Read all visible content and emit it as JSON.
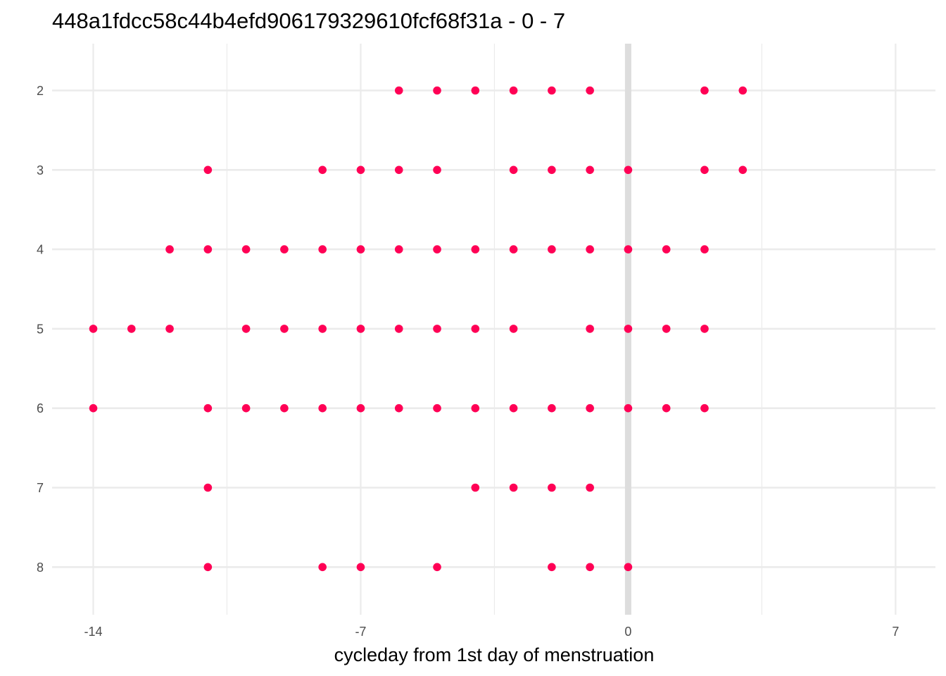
{
  "chart_data": {
    "type": "scatter",
    "title": "448a1fdcc58c44b4efd906179329610fcf68f31a - 0 - 7",
    "xlabel": "cycleday from 1st day of menstruation",
    "ylabel": "",
    "x_ticks": [
      -14,
      -7,
      0,
      7
    ],
    "x_tick_labels": [
      "-14",
      "-7",
      "0",
      "7"
    ],
    "y_ticks": [
      2,
      3,
      4,
      5,
      6,
      7,
      8
    ],
    "y_tick_labels": [
      "2",
      "3",
      "4",
      "5",
      "6",
      "7",
      "8"
    ],
    "xlim": [
      -14,
      7
    ],
    "ylim": [
      8,
      2
    ],
    "y_reversed": true,
    "grid": true,
    "reference_line_x": 0,
    "point_color": "#ff0055",
    "grid_color": "#ebebeb",
    "reference_line_color": "#dddddd",
    "points": [
      {
        "x": -6,
        "y": 2
      },
      {
        "x": -5,
        "y": 2
      },
      {
        "x": -4,
        "y": 2
      },
      {
        "x": -3,
        "y": 2
      },
      {
        "x": -2,
        "y": 2
      },
      {
        "x": -1,
        "y": 2
      },
      {
        "x": 2,
        "y": 2
      },
      {
        "x": 3,
        "y": 2
      },
      {
        "x": -11,
        "y": 3
      },
      {
        "x": -8,
        "y": 3
      },
      {
        "x": -7,
        "y": 3
      },
      {
        "x": -6,
        "y": 3
      },
      {
        "x": -5,
        "y": 3
      },
      {
        "x": -3,
        "y": 3
      },
      {
        "x": -2,
        "y": 3
      },
      {
        "x": -1,
        "y": 3
      },
      {
        "x": 0,
        "y": 3
      },
      {
        "x": 2,
        "y": 3
      },
      {
        "x": 3,
        "y": 3
      },
      {
        "x": -12,
        "y": 4
      },
      {
        "x": -11,
        "y": 4
      },
      {
        "x": -10,
        "y": 4
      },
      {
        "x": -9,
        "y": 4
      },
      {
        "x": -8,
        "y": 4
      },
      {
        "x": -7,
        "y": 4
      },
      {
        "x": -6,
        "y": 4
      },
      {
        "x": -5,
        "y": 4
      },
      {
        "x": -4,
        "y": 4
      },
      {
        "x": -3,
        "y": 4
      },
      {
        "x": -2,
        "y": 4
      },
      {
        "x": -1,
        "y": 4
      },
      {
        "x": 0,
        "y": 4
      },
      {
        "x": 1,
        "y": 4
      },
      {
        "x": 2,
        "y": 4
      },
      {
        "x": -14,
        "y": 5
      },
      {
        "x": -13,
        "y": 5
      },
      {
        "x": -12,
        "y": 5
      },
      {
        "x": -10,
        "y": 5
      },
      {
        "x": -9,
        "y": 5
      },
      {
        "x": -8,
        "y": 5
      },
      {
        "x": -7,
        "y": 5
      },
      {
        "x": -6,
        "y": 5
      },
      {
        "x": -5,
        "y": 5
      },
      {
        "x": -4,
        "y": 5
      },
      {
        "x": -3,
        "y": 5
      },
      {
        "x": -1,
        "y": 5
      },
      {
        "x": 0,
        "y": 5
      },
      {
        "x": 1,
        "y": 5
      },
      {
        "x": 2,
        "y": 5
      },
      {
        "x": -14,
        "y": 6
      },
      {
        "x": -11,
        "y": 6
      },
      {
        "x": -10,
        "y": 6
      },
      {
        "x": -9,
        "y": 6
      },
      {
        "x": -8,
        "y": 6
      },
      {
        "x": -7,
        "y": 6
      },
      {
        "x": -6,
        "y": 6
      },
      {
        "x": -5,
        "y": 6
      },
      {
        "x": -4,
        "y": 6
      },
      {
        "x": -3,
        "y": 6
      },
      {
        "x": -2,
        "y": 6
      },
      {
        "x": -1,
        "y": 6
      },
      {
        "x": 0,
        "y": 6
      },
      {
        "x": 1,
        "y": 6
      },
      {
        "x": 2,
        "y": 6
      },
      {
        "x": -11,
        "y": 7
      },
      {
        "x": -4,
        "y": 7
      },
      {
        "x": -3,
        "y": 7
      },
      {
        "x": -2,
        "y": 7
      },
      {
        "x": -1,
        "y": 7
      },
      {
        "x": -11,
        "y": 8
      },
      {
        "x": -8,
        "y": 8
      },
      {
        "x": -7,
        "y": 8
      },
      {
        "x": -5,
        "y": 8
      },
      {
        "x": -2,
        "y": 8
      },
      {
        "x": -1,
        "y": 8
      },
      {
        "x": 0,
        "y": 8
      }
    ]
  }
}
